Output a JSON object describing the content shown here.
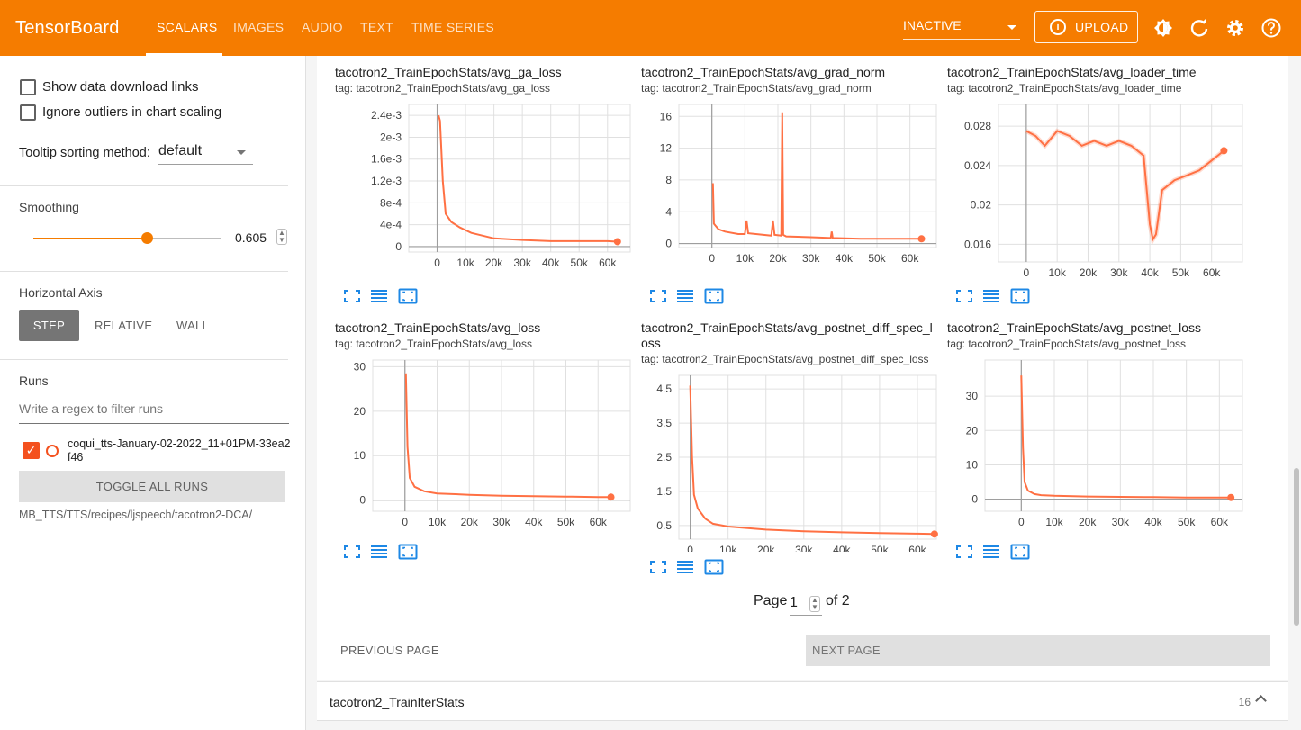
{
  "app": {
    "title": "TensorBoard"
  },
  "tabs": [
    {
      "label": "SCALARS"
    },
    {
      "label": "IMAGES"
    },
    {
      "label": "AUDIO"
    },
    {
      "label": "TEXT"
    },
    {
      "label": "TIME SERIES"
    }
  ],
  "toolbar": {
    "status": "INACTIVE",
    "upload_label": "UPLOAD"
  },
  "sidebar": {
    "show_download_links": "Show data download links",
    "ignore_outliers": "Ignore outliers in chart scaling",
    "tooltip_label": "Tooltip sorting method:",
    "tooltip_value": "default",
    "smoothing_label": "Smoothing",
    "smoothing_value": "0.605",
    "smoothing_fraction": 0.605,
    "horizontal_axis_label": "Horizontal Axis",
    "axis_options": [
      "STEP",
      "RELATIVE",
      "WALL"
    ],
    "runs_label": "Runs",
    "filter_placeholder": "Write a regex to filter runs",
    "run_name": "coqui_tts-January-02-2022_11+01PM-33ea2f46",
    "toggle_all": "TOGGLE ALL RUNS",
    "logdir": "MB_TTS/TTS/recipes/ljspeech/tacotron2-DCA/"
  },
  "colors": {
    "accent": "#f57c00",
    "series": "#ff7043"
  },
  "cards": [
    {
      "title": "tacotron2_TrainEpochStats/avg_ga_loss",
      "tag": "tag: tacotron2_TrainEpochStats/avg_ga_loss"
    },
    {
      "title": "tacotron2_TrainEpochStats/avg_grad_norm",
      "tag": "tag: tacotron2_TrainEpochStats/avg_grad_norm"
    },
    {
      "title": "tacotron2_TrainEpochStats/avg_loader_time",
      "tag": "tag: tacotron2_TrainEpochStats/avg_loader_time"
    },
    {
      "title": "tacotron2_TrainEpochStats/avg_loss",
      "tag": "tag: tacotron2_TrainEpochStats/avg_loss"
    },
    {
      "title": "tacotron2_TrainEpochStats/avg_postnet_diff_spec_loss",
      "tag": "tag: tacotron2_TrainEpochStats/avg_postnet_diff_spec_loss"
    },
    {
      "title": "tacotron2_TrainEpochStats/avg_postnet_loss",
      "tag": "tag: tacotron2_TrainEpochStats/avg_postnet_loss"
    }
  ],
  "chart_data": [
    {
      "type": "line",
      "xlim": [
        -10000,
        68000
      ],
      "ylim": [
        -0.0001,
        0.0026
      ],
      "x_ticks": [
        "0",
        "10k",
        "20k",
        "30k",
        "40k",
        "50k",
        "60k"
      ],
      "x_tick_values": [
        0,
        10000,
        20000,
        30000,
        40000,
        50000,
        60000
      ],
      "y_ticks": [
        "0",
        "4e-4",
        "8e-4",
        "1.2e-3",
        "1.6e-3",
        "2e-3",
        "2.4e-3"
      ],
      "y_tick_values": [
        0,
        0.0004,
        0.0008,
        0.0012,
        0.0016,
        0.002,
        0.0024
      ],
      "x": [
        500,
        1000,
        2000,
        3000,
        5000,
        8000,
        12000,
        20000,
        30000,
        40000,
        50000,
        60000,
        63500
      ],
      "y": [
        0.0024,
        0.0023,
        0.0012,
        0.0006,
        0.00045,
        0.00035,
        0.00025,
        0.00015,
        0.00012,
        0.0001,
        0.0001,
        0.0001,
        9e-05
      ]
    },
    {
      "type": "line",
      "xlim": [
        -10000,
        68000
      ],
      "ylim": [
        -0.5,
        17.5
      ],
      "x_ticks": [
        "0",
        "10k",
        "20k",
        "30k",
        "40k",
        "50k",
        "60k"
      ],
      "x_tick_values": [
        0,
        10000,
        20000,
        30000,
        40000,
        50000,
        60000
      ],
      "y_ticks": [
        "0",
        "4",
        "8",
        "12",
        "16"
      ],
      "y_tick_values": [
        0,
        4,
        8,
        12,
        16
      ],
      "x": [
        300,
        600,
        1000,
        2000,
        4000,
        8000,
        10000,
        10500,
        11000,
        18000,
        18500,
        19000,
        21000,
        21300,
        21600,
        22500,
        30000,
        36000,
        36300,
        36600,
        45000,
        55000,
        63500
      ],
      "y": [
        7.6,
        2.5,
        2.3,
        1.8,
        1.5,
        1.2,
        1.2,
        2.9,
        1.3,
        1.0,
        2.9,
        1.1,
        1.0,
        16.5,
        1.1,
        0.9,
        0.8,
        0.7,
        1.5,
        0.7,
        0.6,
        0.6,
        0.6
      ]
    },
    {
      "type": "line",
      "xlim": [
        -9000,
        70000
      ],
      "ylim": [
        0.0142,
        0.0302
      ],
      "x_ticks": [
        "0",
        "10k",
        "20k",
        "30k",
        "40k",
        "50k",
        "60k"
      ],
      "x_tick_values": [
        0,
        10000,
        20000,
        30000,
        40000,
        50000,
        60000
      ],
      "y_ticks": [
        "0.016",
        "0.02",
        "0.024",
        "0.028"
      ],
      "y_tick_values": [
        0.016,
        0.02,
        0.024,
        0.028
      ],
      "x": [
        0,
        3000,
        6000,
        10000,
        14000,
        18000,
        22000,
        26000,
        30000,
        34000,
        38000,
        40000,
        41000,
        42000,
        44000,
        48000,
        52000,
        56000,
        60000,
        64000
      ],
      "y": [
        0.0275,
        0.027,
        0.026,
        0.0275,
        0.027,
        0.026,
        0.0265,
        0.026,
        0.0265,
        0.026,
        0.025,
        0.018,
        0.0165,
        0.017,
        0.0215,
        0.0225,
        0.023,
        0.0235,
        0.0245,
        0.0255
      ]
    },
    {
      "type": "line",
      "xlim": [
        -10000,
        70000
      ],
      "ylim": [
        -2.5,
        31.5
      ],
      "x_ticks": [
        "0",
        "10k",
        "20k",
        "30k",
        "40k",
        "50k",
        "60k"
      ],
      "x_tick_values": [
        0,
        10000,
        20000,
        30000,
        40000,
        50000,
        60000
      ],
      "y_ticks": [
        "0",
        "10",
        "20",
        "30"
      ],
      "y_tick_values": [
        0,
        10,
        20,
        30
      ],
      "x": [
        300,
        800,
        1500,
        3000,
        6000,
        10000,
        20000,
        30000,
        40000,
        50000,
        60000,
        64000
      ],
      "y": [
        28.5,
        12,
        5,
        3,
        2,
        1.5,
        1.2,
        1,
        0.9,
        0.8,
        0.7,
        0.7
      ]
    },
    {
      "type": "line",
      "xlim": [
        -3000,
        65000
      ],
      "ylim": [
        0.1,
        4.9
      ],
      "x_ticks": [
        "0",
        "10k",
        "20k",
        "30k",
        "40k",
        "50k",
        "60k"
      ],
      "x_tick_values": [
        0,
        10000,
        20000,
        30000,
        40000,
        50000,
        60000
      ],
      "y_ticks": [
        "0.5",
        "1.5",
        "2.5",
        "3.5",
        "4.5"
      ],
      "y_tick_values": [
        0.5,
        1.5,
        2.5,
        3.5,
        4.5
      ],
      "x": [
        0,
        500,
        1000,
        2000,
        4000,
        6000,
        10000,
        20000,
        30000,
        40000,
        50000,
        60000,
        64500
      ],
      "y": [
        4.6,
        2.5,
        1.4,
        1.0,
        0.7,
        0.55,
        0.47,
        0.38,
        0.33,
        0.3,
        0.28,
        0.26,
        0.25
      ]
    },
    {
      "type": "line",
      "xlim": [
        -11000,
        67000
      ],
      "ylim": [
        -3.5,
        40.5
      ],
      "x_ticks": [
        "0",
        "10k",
        "20k",
        "30k",
        "40k",
        "50k",
        "60k"
      ],
      "x_tick_values": [
        0,
        10000,
        20000,
        30000,
        40000,
        50000,
        60000
      ],
      "y_ticks": [
        "0",
        "10",
        "20",
        "30"
      ],
      "y_tick_values": [
        0,
        10,
        20,
        30
      ],
      "x": [
        0,
        500,
        1000,
        2000,
        4000,
        6000,
        10000,
        20000,
        30000,
        40000,
        50000,
        60000,
        63500
      ],
      "y": [
        36,
        15,
        5,
        2.5,
        1.5,
        1.2,
        1,
        0.8,
        0.7,
        0.6,
        0.5,
        0.5,
        0.5
      ]
    }
  ],
  "pagination": {
    "page_label": "Page",
    "page_value": "1",
    "of_label": "of 2",
    "prev": "PREVIOUS PAGE",
    "next": "NEXT PAGE"
  },
  "group": {
    "title": "tacotron2_TrainIterStats",
    "count": "16"
  }
}
